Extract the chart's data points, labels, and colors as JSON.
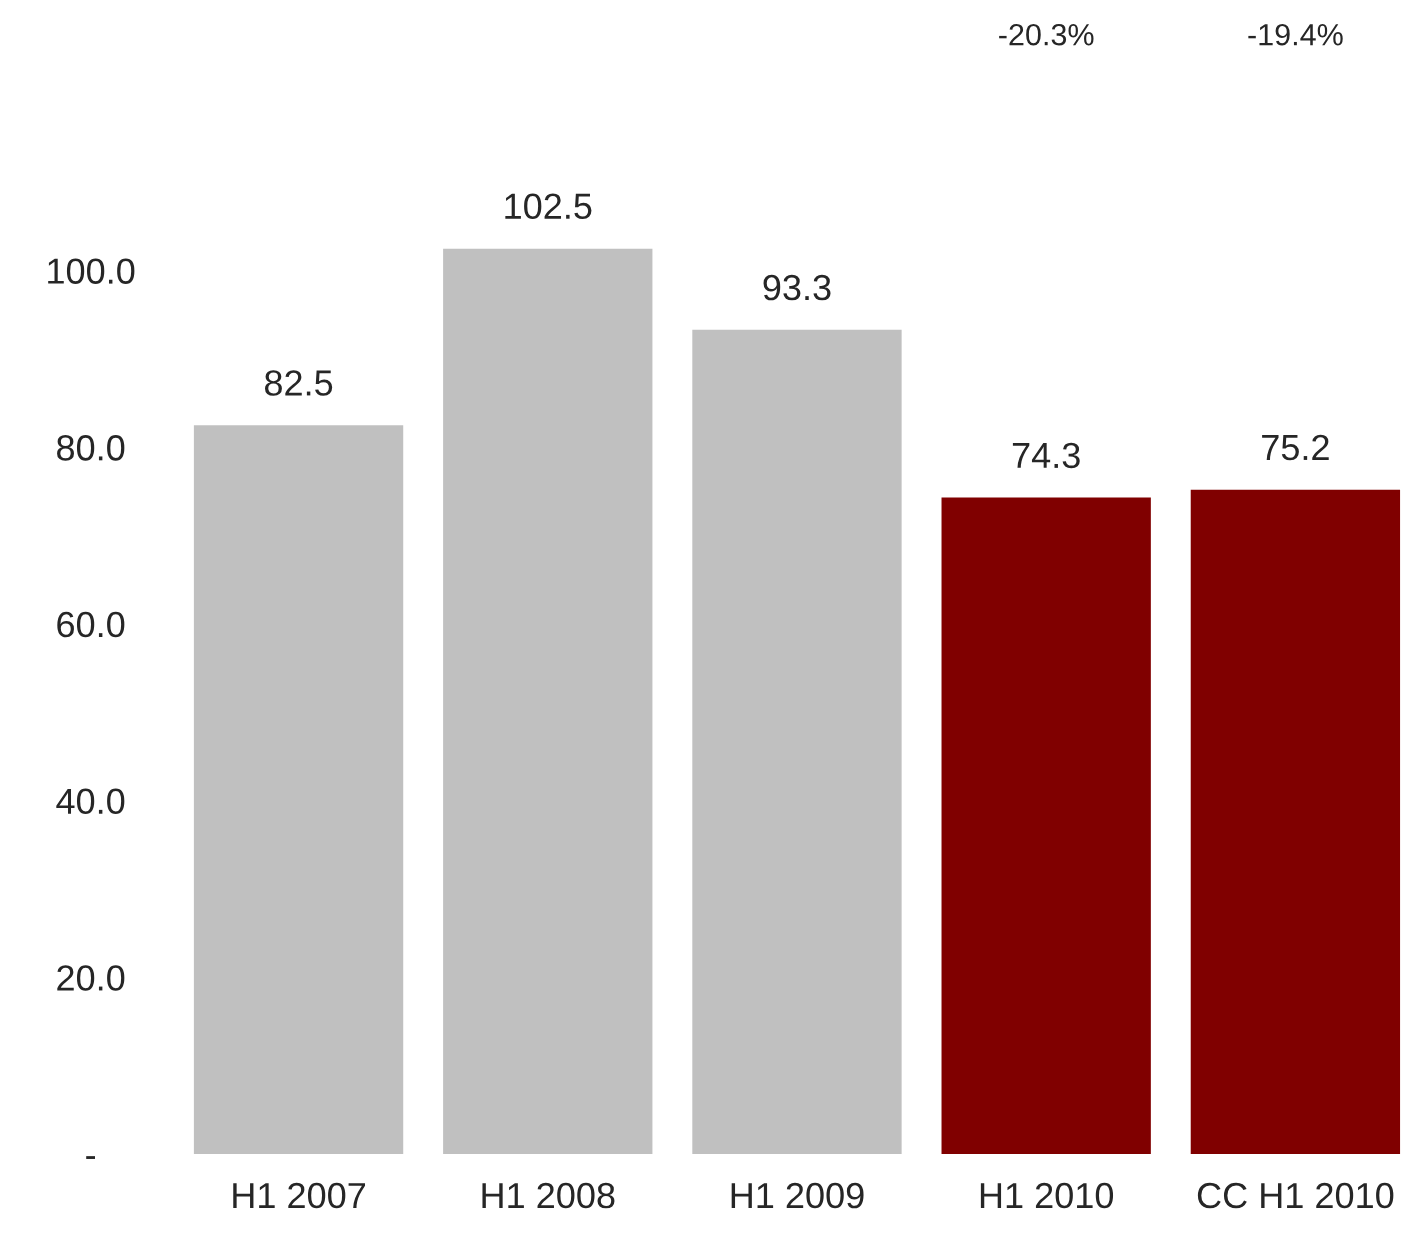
{
  "chart_data": {
    "type": "bar",
    "categories": [
      "H1 2007",
      "H1 2008",
      "H1 2009",
      "H1 2010",
      "CC H1 2010"
    ],
    "values": [
      82.5,
      102.5,
      93.3,
      74.3,
      75.2
    ],
    "colors": [
      "#c0c0c0",
      "#c0c0c0",
      "#c0c0c0",
      "#800000",
      "#800000"
    ],
    "data_labels": true,
    "yticks": [
      {
        "value": 0,
        "label": "-"
      },
      {
        "value": 20,
        "label": "20.0"
      },
      {
        "value": 40,
        "label": "40.0"
      },
      {
        "value": 60,
        "label": "60.0"
      },
      {
        "value": 80,
        "label": "80.0"
      },
      {
        "value": 100,
        "label": "100.0"
      }
    ],
    "ylim": [
      0,
      102.5
    ],
    "grid": false,
    "legend": false,
    "annotations": [
      "-20.3%",
      "-19.4%"
    ]
  }
}
